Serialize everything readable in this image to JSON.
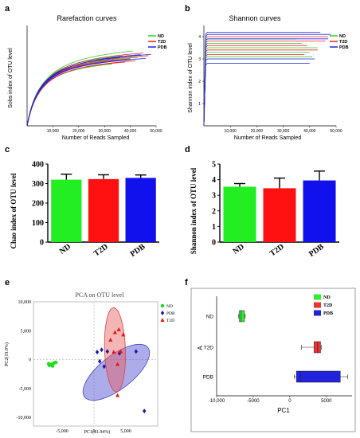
{
  "panel_letters": [
    "a",
    "b",
    "c",
    "d",
    "e",
    "f"
  ],
  "chart_data": [
    {
      "panel": "a",
      "type": "line",
      "title": "Rarefaction curves",
      "xlabel": "Number of Reads Sampled",
      "ylabel": "Sobs index of OTU level",
      "xticks": [
        "10,000",
        "20,000",
        "30,000",
        "40,000",
        "50,000"
      ],
      "xlim": [
        0,
        50000
      ],
      "ylim": [
        0,
        400
      ],
      "legend": {
        "placement": "top-right",
        "entries": [
          "ND",
          "T2D",
          "PDB"
        ]
      },
      "series": [
        {
          "name": "ND",
          "color": "#33cc33",
          "curves": [
            {
              "end": 41000,
              "asymptote": 345,
              "k": 6500
            },
            {
              "end": 37000,
              "asymptote": 320,
              "k": 5500
            },
            {
              "end": 35000,
              "asymptote": 300,
              "k": 5000
            },
            {
              "end": 33000,
              "asymptote": 285,
              "k": 5200
            },
            {
              "end": 43000,
              "asymptote": 310,
              "k": 5800
            }
          ]
        },
        {
          "name": "T2D",
          "color": "#ee2222",
          "curves": [
            {
              "end": 45000,
              "asymptote": 330,
              "k": 6200
            },
            {
              "end": 40000,
              "asymptote": 305,
              "k": 5600
            },
            {
              "end": 38000,
              "asymptote": 290,
              "k": 5400
            },
            {
              "end": 47000,
              "asymptote": 315,
              "k": 6000
            },
            {
              "end": 42000,
              "asymptote": 295,
              "k": 5800
            }
          ]
        },
        {
          "name": "PDB",
          "color": "#2222dd",
          "curves": [
            {
              "end": 48000,
              "asymptote": 320,
              "k": 6000
            },
            {
              "end": 44000,
              "asymptote": 325,
              "k": 6400
            },
            {
              "end": 40000,
              "asymptote": 300,
              "k": 5600
            },
            {
              "end": 36000,
              "asymptote": 315,
              "k": 5600
            },
            {
              "end": 46000,
              "asymptote": 300,
              "k": 5400
            }
          ]
        }
      ]
    },
    {
      "panel": "b",
      "type": "line",
      "title": "Shannon curves",
      "xlabel": "Number of Reads Sampled",
      "ylabel": "Shannon index of OTU level",
      "xticks": [
        "10,000",
        "20,000",
        "30,000",
        "40,000",
        "50,000"
      ],
      "yticks": [
        "1",
        "2",
        "3",
        "4"
      ],
      "xlim": [
        0,
        50000
      ],
      "ylim": [
        0,
        4.5
      ],
      "legend": {
        "placement": "top-right",
        "entries": [
          "ND",
          "T2D",
          "PDB"
        ]
      },
      "series": [
        {
          "name": "ND",
          "color": "#33cc33",
          "curves": [
            {
              "end": 43000,
              "level": 3.5
            },
            {
              "end": 40000,
              "level": 3.3
            },
            {
              "end": 37000,
              "level": 3.7
            },
            {
              "end": 41000,
              "level": 3.1
            },
            {
              "end": 35000,
              "level": 3.9
            }
          ]
        },
        {
          "name": "T2D",
          "color": "#ee2222",
          "curves": [
            {
              "end": 46000,
              "level": 3.8
            },
            {
              "end": 43000,
              "level": 3.4
            },
            {
              "end": 39000,
              "level": 3.6
            },
            {
              "end": 47000,
              "level": 4.0
            },
            {
              "end": 38000,
              "level": 3.2
            }
          ]
        },
        {
          "name": "PDB",
          "color": "#2222dd",
          "curves": [
            {
              "end": 44000,
              "level": 4.2
            },
            {
              "end": 42000,
              "level": 3.0
            },
            {
              "end": 47000,
              "level": 3.9
            },
            {
              "end": 40000,
              "level": 2.8
            },
            {
              "end": 48000,
              "level": 4.1
            }
          ]
        }
      ]
    },
    {
      "panel": "c",
      "type": "bar",
      "ylabel": "Chao index of OTU level",
      "categories": [
        "ND",
        "T2D",
        "PDB"
      ],
      "values": [
        320,
        323,
        329
      ],
      "errors": [
        28,
        22,
        15
      ],
      "colors": [
        "#22ee22",
        "#ff1111",
        "#1111ee"
      ],
      "ylim": [
        0,
        400
      ],
      "yticks": [
        "0",
        "100",
        "200",
        "300",
        "400"
      ]
    },
    {
      "panel": "d",
      "type": "bar",
      "ylabel": "Shannon index of OTU level",
      "categories": [
        "ND",
        "T2D",
        "PDB"
      ],
      "values": [
        3.55,
        3.45,
        3.95
      ],
      "errors": [
        0.2,
        0.65,
        0.6
      ],
      "colors": [
        "#22ee22",
        "#ff1111",
        "#1111ee"
      ],
      "ylim": [
        0,
        5
      ],
      "yticks": [
        "0",
        "1",
        "2",
        "3",
        "4",
        "5"
      ]
    },
    {
      "panel": "e",
      "type": "scatter",
      "title": "PCA on OTU level",
      "xlabel": "PC1(41.94%)",
      "ylabel": "PC2(19.9%)",
      "xticks": [
        "-5,000",
        "0",
        "5,000"
      ],
      "xtick_values": [
        -5000,
        0,
        5000
      ],
      "yticks": [
        "10,000",
        "5,000",
        "0",
        "-5,000",
        "-10,000"
      ],
      "ytick_values": [
        10000,
        5000,
        0,
        -5000,
        -10000
      ],
      "xlim": [
        -9500,
        10000
      ],
      "ylim": [
        -11500,
        10000
      ],
      "grid": "dashed zero lines",
      "legend": {
        "placement": "top-right",
        "entries": [
          "ND",
          "PDB",
          "T2D"
        ]
      },
      "series": [
        {
          "name": "ND",
          "color": "#22dd22",
          "marker": "circle",
          "points": [
            [
              -7000,
              -1000
            ],
            [
              -6600,
              -800
            ],
            [
              -6300,
              -600
            ],
            [
              -7100,
              -700
            ],
            [
              -6500,
              -1100
            ],
            [
              -6000,
              -500
            ]
          ]
        },
        {
          "name": "PDB",
          "color": "#1a1aaa",
          "marker": "diamond",
          "points": [
            [
              500,
              1300
            ],
            [
              1200,
              1700
            ],
            [
              900,
              -300
            ],
            [
              2100,
              1400
            ],
            [
              1600,
              -1200
            ],
            [
              4000,
              1100
            ],
            [
              6600,
              1400
            ],
            [
              7900,
              -8900
            ]
          ]
        },
        {
          "name": "T2D",
          "color": "#ee1111",
          "marker": "triangle",
          "points": [
            [
              2600,
              3400
            ],
            [
              3300,
              4700
            ],
            [
              3900,
              5200
            ],
            [
              4200,
              1400
            ],
            [
              3700,
              -800
            ],
            [
              3100,
              1300
            ],
            [
              4600,
              4300
            ],
            [
              3700,
              -6200
            ]
          ]
        }
      ],
      "ellipses": [
        {
          "name": "PDB",
          "color": "#4444cc",
          "fill": "rgba(70,70,210,0.45)",
          "cx": 3500,
          "cy": -2200,
          "rx": 6300,
          "ry": 2900,
          "angle_deg": 38
        },
        {
          "name": "T2D",
          "color": "#dd4444",
          "fill": "rgba(230,90,90,0.45)",
          "cx": 3300,
          "cy": 1700,
          "rx": 6600,
          "ry": 1800,
          "angle_deg": -88
        }
      ]
    },
    {
      "panel": "f",
      "type": "box",
      "xlabel": "PC1",
      "ylabel": "A",
      "categories": [
        "ND",
        "T2D",
        "PDB"
      ],
      "xticks": [
        "-10,000",
        "-5000",
        "0",
        "5000"
      ],
      "xtick_values": [
        -10000,
        -5000,
        0,
        5000
      ],
      "xlim": [
        -10000,
        8500
      ],
      "legend": {
        "placement": "top-right",
        "entries": [
          "ND",
          "T2D",
          "PDB"
        ]
      },
      "boxes": [
        {
          "name": "ND",
          "color": "#33ee33",
          "min": -7000,
          "q1": -6900,
          "median": -6650,
          "q3": -6200,
          "max": -6100
        },
        {
          "name": "T2D",
          "color": "#ee3333",
          "min": 1600,
          "q1": 3300,
          "median": 3800,
          "q3": 4200,
          "max": 4300
        },
        {
          "name": "PDB",
          "color": "#2222dd",
          "min": 600,
          "q1": 900,
          "median": 1500,
          "q3": 6900,
          "max": 7900
        }
      ]
    }
  ]
}
